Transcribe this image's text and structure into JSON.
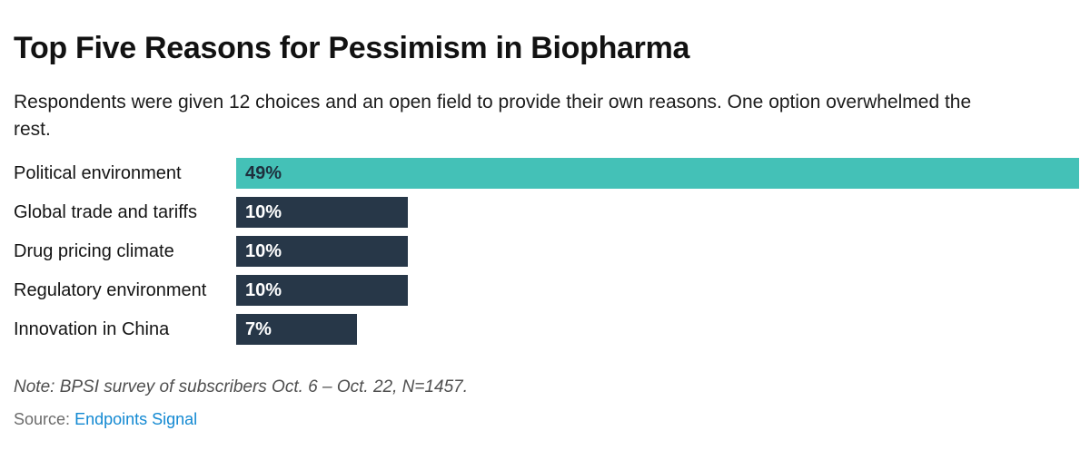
{
  "header": {
    "title": "Top Five Reasons for Pessimism in Biopharma",
    "subtitle": "Respondents were given 12 choices and an open field to provide their own reasons. One option overwhelmed the rest."
  },
  "chart_data": {
    "type": "bar",
    "orientation": "horizontal",
    "title": "Top Five Reasons for Pessimism in Biopharma",
    "xlabel": "",
    "ylabel": "",
    "categories": [
      "Political environment",
      "Global trade and tariffs",
      "Drug pricing climate",
      "Regulatory environment",
      "Innovation in China"
    ],
    "values": [
      49,
      10,
      10,
      10,
      7
    ],
    "value_labels": [
      "49%",
      "10%",
      "10%",
      "10%",
      "7%"
    ],
    "axis_max": 49,
    "grid": false,
    "legend": false,
    "bar_colors": [
      "#44c1b7",
      "#273748",
      "#273748",
      "#273748",
      "#273748"
    ],
    "value_label_colors": [
      "#1e2f3d",
      "#ffffff",
      "#ffffff",
      "#ffffff",
      "#ffffff"
    ]
  },
  "footer": {
    "note": "Note: BPSI survey of subscribers Oct. 6 – Oct. 22, N=1457.",
    "source_label": "Source:",
    "source_link_text": "Endpoints Signal"
  },
  "colors": {
    "highlight_bar": "#44c1b7",
    "default_bar": "#273748",
    "link": "#1389d2",
    "note_text": "#4f4f4f"
  }
}
